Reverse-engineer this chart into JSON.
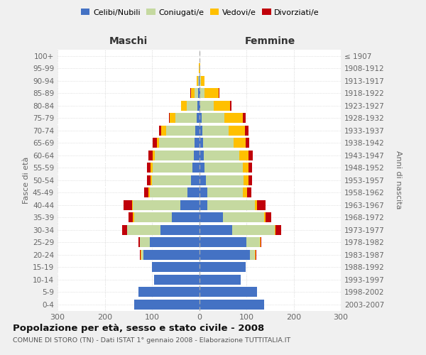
{
  "age_groups_bottom_to_top": [
    "0-4",
    "5-9",
    "10-14",
    "15-19",
    "20-24",
    "25-29",
    "30-34",
    "35-39",
    "40-44",
    "45-49",
    "50-54",
    "55-59",
    "60-64",
    "65-69",
    "70-74",
    "75-79",
    "80-84",
    "85-89",
    "90-94",
    "95-99",
    "100+"
  ],
  "birth_years_bottom_to_top": [
    "2003-2007",
    "1998-2002",
    "1993-1997",
    "1988-1992",
    "1983-1987",
    "1978-1982",
    "1973-1977",
    "1968-1972",
    "1963-1967",
    "1958-1962",
    "1953-1957",
    "1948-1952",
    "1943-1947",
    "1938-1942",
    "1933-1937",
    "1928-1932",
    "1923-1927",
    "1918-1922",
    "1913-1917",
    "1908-1912",
    "≤ 1907"
  ],
  "maschi_celibe": [
    138,
    128,
    95,
    100,
    118,
    105,
    82,
    58,
    40,
    25,
    17,
    14,
    12,
    10,
    8,
    5,
    4,
    2,
    1,
    0,
    0
  ],
  "maschi_coniugato": [
    0,
    0,
    0,
    0,
    5,
    20,
    70,
    80,
    100,
    80,
    83,
    85,
    82,
    75,
    62,
    45,
    22,
    8,
    2,
    0,
    0
  ],
  "maschi_vedovo": [
    0,
    0,
    0,
    0,
    1,
    1,
    1,
    2,
    2,
    2,
    3,
    4,
    5,
    5,
    10,
    12,
    12,
    8,
    2,
    1,
    0
  ],
  "maschi_divorziato": [
    0,
    0,
    0,
    0,
    1,
    2,
    10,
    10,
    18,
    10,
    7,
    8,
    8,
    8,
    5,
    2,
    1,
    1,
    0,
    0,
    0
  ],
  "femmine_celibe": [
    138,
    122,
    88,
    98,
    108,
    100,
    70,
    50,
    18,
    18,
    14,
    12,
    10,
    8,
    7,
    5,
    3,
    2,
    1,
    0,
    0
  ],
  "femmine_coniugata": [
    0,
    0,
    0,
    0,
    10,
    28,
    90,
    88,
    100,
    75,
    80,
    80,
    75,
    65,
    55,
    48,
    28,
    10,
    3,
    0,
    0
  ],
  "femmine_vedova": [
    0,
    0,
    0,
    0,
    2,
    2,
    2,
    3,
    5,
    8,
    10,
    12,
    20,
    25,
    35,
    40,
    35,
    30,
    8,
    2,
    1
  ],
  "femmine_divorziata": [
    0,
    0,
    0,
    0,
    1,
    2,
    12,
    12,
    18,
    10,
    8,
    8,
    8,
    8,
    8,
    5,
    2,
    1,
    0,
    0,
    0
  ],
  "colors": {
    "celibe": "#4472c4",
    "coniugato": "#c5d9a0",
    "vedovo": "#ffc000",
    "divorziato": "#c0000a"
  },
  "legend_labels": [
    "Celibi/Nubili",
    "Coniugati/e",
    "Vedovi/e",
    "Divorziati/e"
  ],
  "title": "Popolazione per età, sesso e stato civile - 2008",
  "subtitle": "COMUNE DI STORO (TN) - Dati ISTAT 1° gennaio 2008 - Elaborazione TUTTITALIA.IT",
  "header_left": "Maschi",
  "header_right": "Femmine",
  "ylabel_left": "Fasce di età",
  "ylabel_right": "Anni di nascita",
  "xlim": 300,
  "background_color": "#f0f0f0",
  "plot_bg": "#ffffff",
  "grid_color": "#cccccc"
}
